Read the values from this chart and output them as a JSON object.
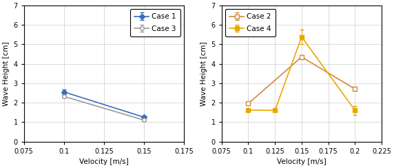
{
  "left": {
    "xlabel": "Velocity [m/s]",
    "ylabel": "Wave Height [cm]",
    "xlim": [
      0.075,
      0.175
    ],
    "ylim": [
      0,
      7
    ],
    "xticks": [
      0.075,
      0.1,
      0.125,
      0.15,
      0.175
    ],
    "yticks": [
      0,
      1,
      2,
      3,
      4,
      5,
      6,
      7
    ],
    "series": [
      {
        "label": "Case 1",
        "x": [
          0.1,
          0.15
        ],
        "y": [
          2.55,
          1.25
        ],
        "yerr": [
          0.12,
          0.09
        ],
        "color": "#3a6bbf",
        "marker": "D",
        "marker_fill": "#3a6bbf",
        "linewidth": 1.2,
        "markersize": 4
      },
      {
        "label": "Case 3",
        "x": [
          0.1,
          0.15
        ],
        "y": [
          2.32,
          1.1
        ],
        "yerr": [
          0.07,
          0.07
        ],
        "color": "#999999",
        "marker": "o",
        "marker_fill": "white",
        "linewidth": 1.2,
        "markersize": 4
      }
    ],
    "legend_loc": "upper right",
    "legend_bbox": null
  },
  "right": {
    "xlabel": "Velocity [m/s]",
    "ylabel": "Wave Height [cm]",
    "xlim": [
      0.075,
      0.225
    ],
    "ylim": [
      0,
      7
    ],
    "xticks": [
      0.075,
      0.1,
      0.125,
      0.15,
      0.175,
      0.2,
      0.225
    ],
    "yticks": [
      0,
      1,
      2,
      3,
      4,
      5,
      6,
      7
    ],
    "series": [
      {
        "label": "Case 2",
        "x": [
          0.1,
          0.15,
          0.2
        ],
        "y": [
          1.95,
          4.35,
          2.7
        ],
        "yerr": [
          0.07,
          0.1,
          0.1
        ],
        "color": "#d4873a",
        "marker": "s",
        "marker_fill": "white",
        "linewidth": 1.2,
        "markersize": 4
      },
      {
        "label": "Case 4",
        "x": [
          0.1,
          0.125,
          0.15,
          0.2
        ],
        "y": [
          1.62,
          1.6,
          5.38,
          1.6
        ],
        "yerr": [
          0.07,
          0.07,
          0.38,
          0.22
        ],
        "color": "#e8a800",
        "marker": "s",
        "marker_fill": "#e8a800",
        "linewidth": 1.2,
        "markersize": 4
      }
    ],
    "legend_loc": "upper left",
    "legend_bbox": null
  }
}
